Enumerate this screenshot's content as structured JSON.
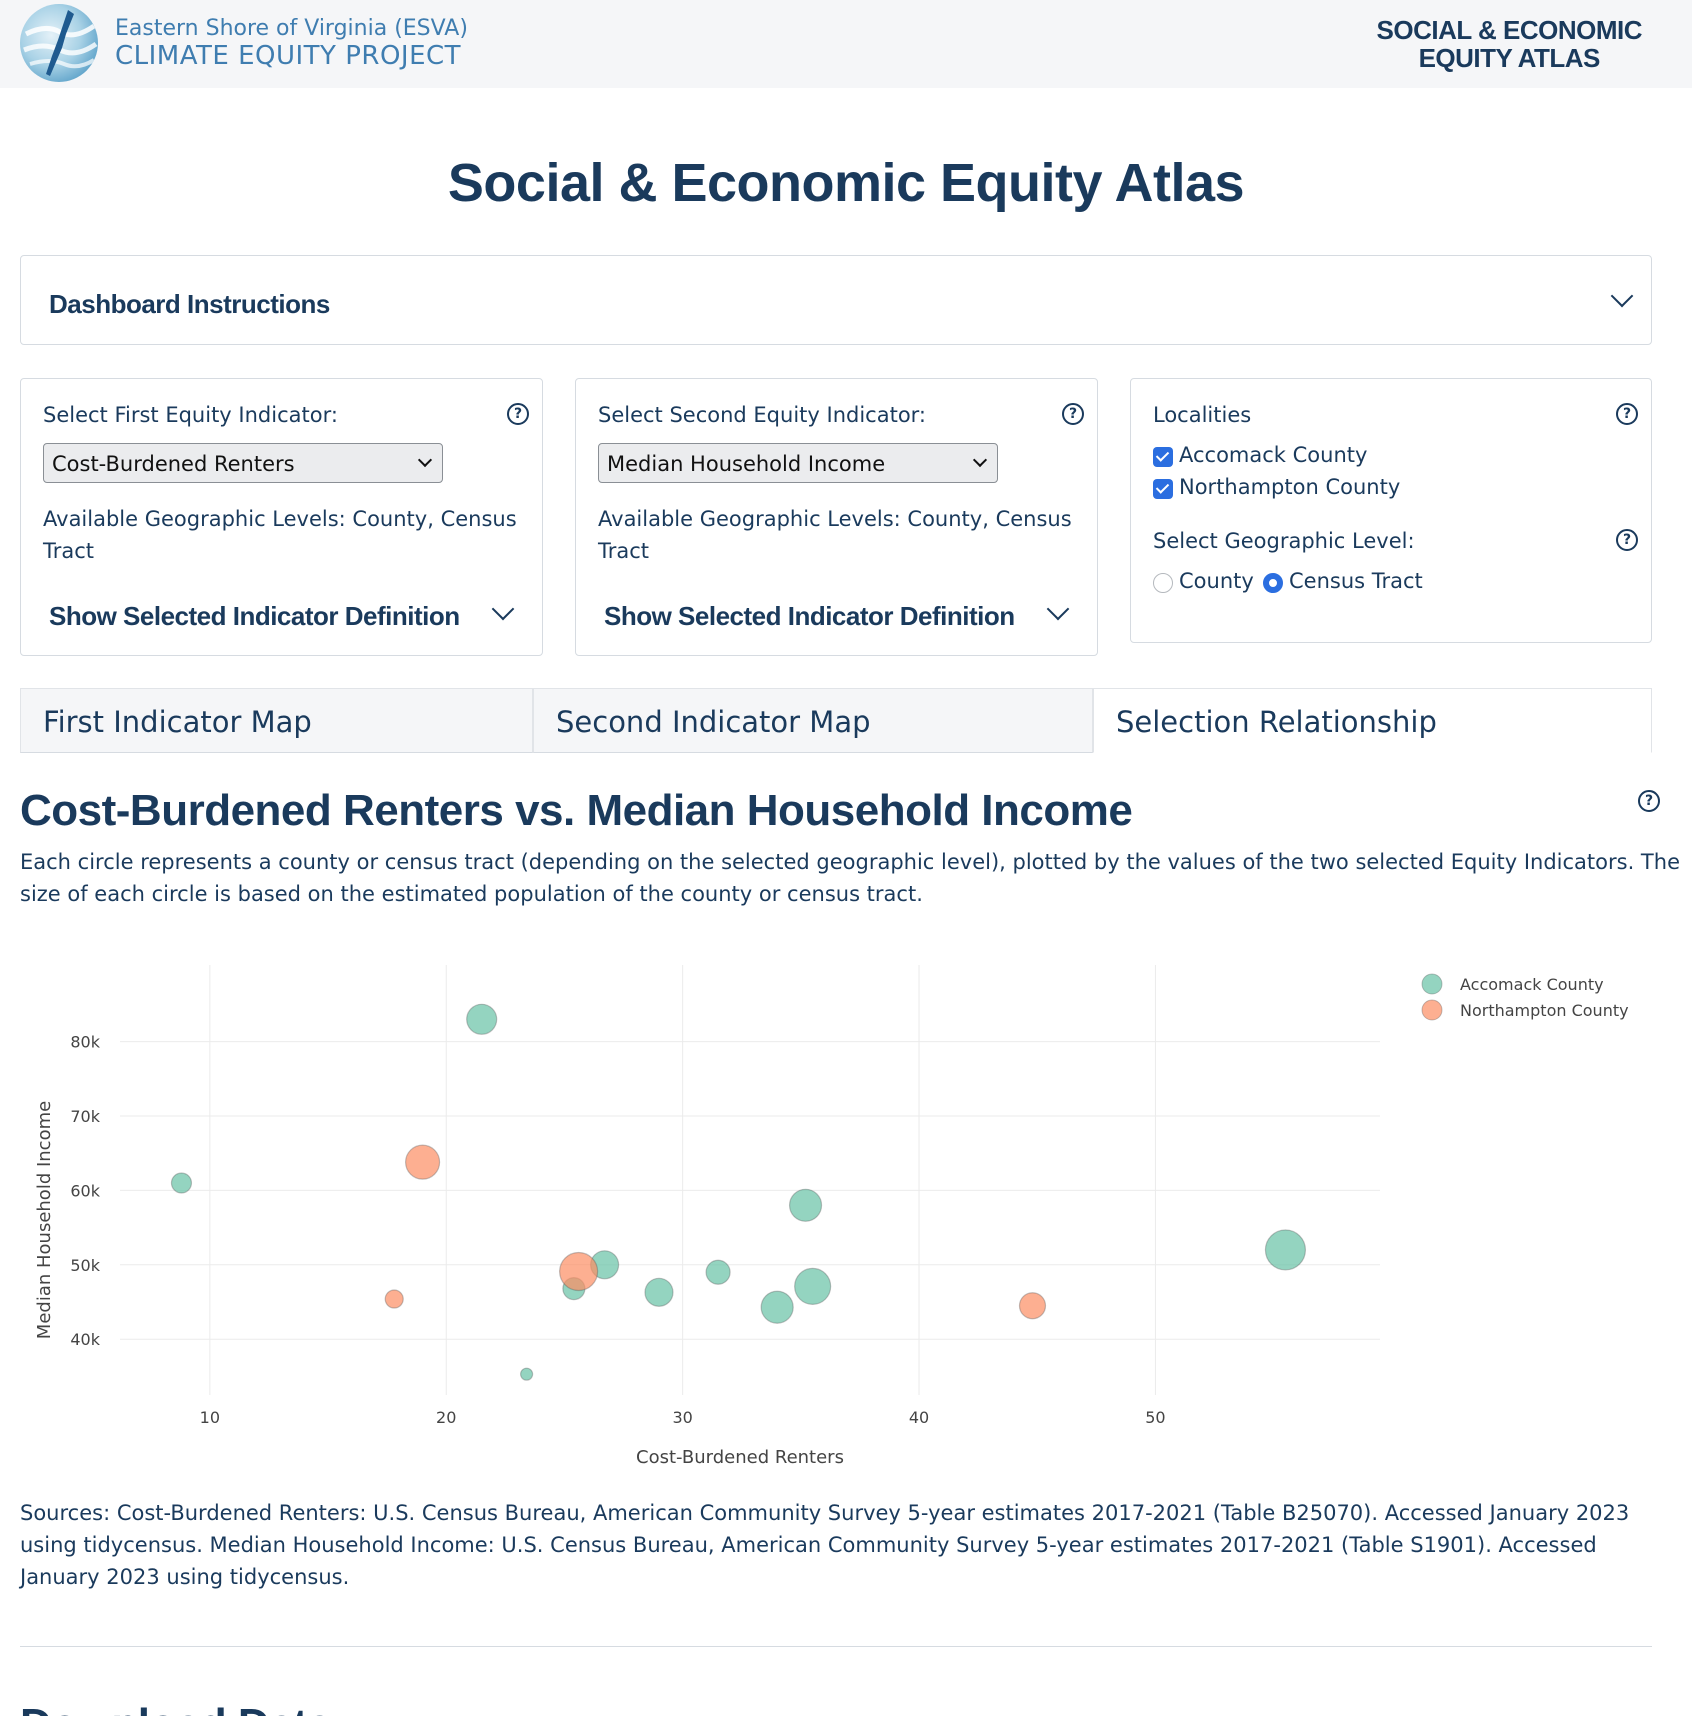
{
  "header": {
    "logo_line1": "Eastern Shore of Virginia (ESVA)",
    "logo_line2": "CLIMATE EQUITY PROJECT",
    "atlas_label": "SOCIAL & ECONOMIC\nEQUITY ATLAS"
  },
  "page_title": "Social & Economic Equity Atlas",
  "instructions": {
    "label": "Dashboard Instructions"
  },
  "first_indicator": {
    "title": "Select First Equity Indicator:",
    "selected": "Cost-Burdened Renters",
    "geo_levels": "Available Geographic Levels: County, Census Tract",
    "show_definition": "Show Selected Indicator Definition"
  },
  "second_indicator": {
    "title": "Select Second Equity Indicator:",
    "selected": "Median Household Income",
    "geo_levels": "Available Geographic Levels: County, Census Tract",
    "show_definition": "Show Selected Indicator Definition"
  },
  "localities": {
    "title": "Localities",
    "items": [
      {
        "label": "Accomack County",
        "checked": true
      },
      {
        "label": "Northampton County",
        "checked": true
      }
    ],
    "geo_level_title": "Select Geographic Level:",
    "geo_options": [
      {
        "label": "County",
        "selected": false
      },
      {
        "label": "Census Tract",
        "selected": true
      }
    ]
  },
  "tabs": [
    {
      "label": "First Indicator Map",
      "active": false
    },
    {
      "label": "Second Indicator Map",
      "active": false
    },
    {
      "label": "Selection Relationship",
      "active": true
    }
  ],
  "chart_section": {
    "title": "Cost-Burdened Renters vs. Median Household Income",
    "description": "Each circle represents a county or census tract (depending on the selected geographic level), plotted by the values of the two selected Equity Indicators. The size of each circle is based on the estimated population of the county or census tract."
  },
  "chart_data": {
    "type": "scatter",
    "xlabel": "Cost-Burdened Renters",
    "ylabel": "Median Household Income",
    "xlim": [
      6.2,
      59.5
    ],
    "ylim": [
      32500,
      90300
    ],
    "x_ticks": [
      10,
      20,
      30,
      40,
      50
    ],
    "y_ticks": [
      40000,
      50000,
      60000,
      70000,
      80000
    ],
    "y_tick_labels": [
      "40k",
      "50k",
      "60k",
      "70k",
      "80k"
    ],
    "grid": true,
    "legend_position": "top-right",
    "series": [
      {
        "name": "Accomack County",
        "color": "#66c2a5",
        "points": [
          {
            "x": 21.5,
            "y": 83000,
            "size": 15
          },
          {
            "x": 8.8,
            "y": 61000,
            "size": 10
          },
          {
            "x": 35.2,
            "y": 58000,
            "size": 16
          },
          {
            "x": 55.5,
            "y": 52000,
            "size": 20
          },
          {
            "x": 26.7,
            "y": 50000,
            "size": 14
          },
          {
            "x": 31.5,
            "y": 49000,
            "size": 12
          },
          {
            "x": 25.4,
            "y": 46800,
            "size": 11
          },
          {
            "x": 29.0,
            "y": 46300,
            "size": 14
          },
          {
            "x": 35.5,
            "y": 47100,
            "size": 18
          },
          {
            "x": 34.0,
            "y": 44300,
            "size": 16
          },
          {
            "x": 23.4,
            "y": 35300,
            "size": 6
          }
        ]
      },
      {
        "name": "Northampton County",
        "color": "#fc8d62",
        "points": [
          {
            "x": 19.0,
            "y": 63800,
            "size": 17
          },
          {
            "x": 25.6,
            "y": 49100,
            "size": 19
          },
          {
            "x": 17.8,
            "y": 45400,
            "size": 9
          },
          {
            "x": 44.8,
            "y": 44500,
            "size": 13
          }
        ]
      }
    ]
  },
  "sources": "Sources: Cost-Burdened Renters: U.S. Census Bureau, American Community Survey 5-year estimates 2017-2021 (Table B25070). Accessed January 2023 using tidycensus. Median Household Income: U.S. Census Bureau, American Community Survey 5-year estimates 2017-2021 (Table S1901). Accessed January 2023 using tidycensus.",
  "download_heading": "Download Data"
}
